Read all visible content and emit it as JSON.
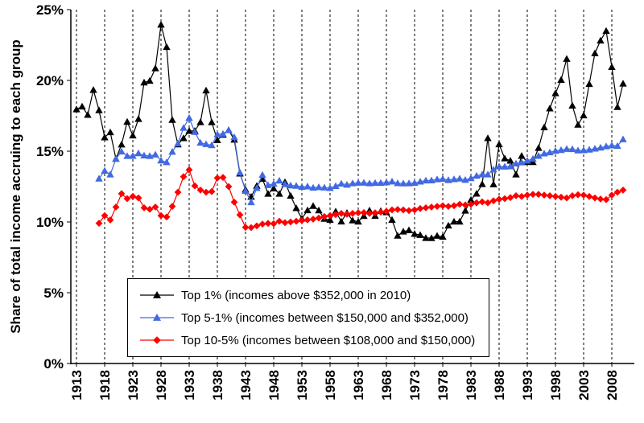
{
  "chart_data": {
    "type": "line",
    "title": "",
    "xlabel": "",
    "ylabel": "Share of total income accruing to each group",
    "ylim": [
      0,
      25
    ],
    "yticks": [
      0,
      5,
      10,
      15,
      20,
      25
    ],
    "ytick_labels": [
      "0%",
      "5%",
      "10%",
      "15%",
      "20%",
      "25%"
    ],
    "xlim": [
      1912,
      2012
    ],
    "xticks": [
      1913,
      1918,
      1923,
      1928,
      1933,
      1938,
      1943,
      1948,
      1953,
      1958,
      1963,
      1968,
      1973,
      1978,
      1983,
      1988,
      1993,
      1998,
      2003,
      2008
    ],
    "grid": "vertical dashed gridlines at labeled years, no horizontal gridlines",
    "legend_position": "inside bottom-center, boxed",
    "series": [
      {
        "id": "top-1pct",
        "name": "Top 1% (incomes above $352,000 in 2010)",
        "color": "#000000",
        "marker": "triangle",
        "start_year": 1913,
        "end_year": 2010,
        "values": [
          17.96,
          18.16,
          17.57,
          19.33,
          17.89,
          15.98,
          16.34,
          14.46,
          15.47,
          17.08,
          16.11,
          17.27,
          19.85,
          19.97,
          20.85,
          23.94,
          22.36,
          17.21,
          15.48,
          15.92,
          16.43,
          16.44,
          17.05,
          19.29,
          17.05,
          15.78,
          16.16,
          16.49,
          15.81,
          13.42,
          12.29,
          11.78,
          12.55,
          13.05,
          11.99,
          12.37,
          11.99,
          12.82,
          11.85,
          10.98,
          10.24,
          10.83,
          11.13,
          10.82,
          10.22,
          10.14,
          10.74,
          10.03,
          10.64,
          10.11,
          10.02,
          10.42,
          10.81,
          10.43,
          10.78,
          10.69,
          10.14,
          9.03,
          9.32,
          9.42,
          9.16,
          9.08,
          8.87,
          8.86,
          9.02,
          8.95,
          9.75,
          10.02,
          10.02,
          10.8,
          11.56,
          12.0,
          12.67,
          15.92,
          12.66,
          15.49,
          14.49,
          14.33,
          13.36,
          14.67,
          14.24,
          14.23,
          15.23,
          16.69,
          18.02,
          19.09,
          20.04,
          21.52,
          18.22,
          16.87,
          17.53,
          19.75,
          21.92,
          22.82,
          23.5,
          20.95,
          18.12,
          19.77
        ]
      },
      {
        "id": "top-5-1pct",
        "name": "Top 5-1% (incomes between $150,000 and $352,000)",
        "color": "#4169e1",
        "marker": "triangle",
        "start_year": 1917,
        "end_year": 2010,
        "values": [
          13.06,
          13.62,
          13.36,
          14.46,
          14.98,
          14.66,
          14.67,
          14.85,
          14.7,
          14.66,
          14.76,
          14.34,
          14.22,
          14.96,
          15.54,
          16.65,
          17.35,
          16.36,
          15.6,
          15.5,
          15.42,
          16.19,
          16.23,
          16.49,
          15.99,
          13.5,
          12.2,
          11.4,
          12.4,
          13.33,
          12.6,
          12.7,
          12.92,
          12.67,
          12.58,
          12.55,
          12.48,
          12.51,
          12.42,
          12.46,
          12.43,
          12.4,
          12.54,
          12.71,
          12.63,
          12.73,
          12.77,
          12.77,
          12.73,
          12.76,
          12.76,
          12.8,
          12.86,
          12.74,
          12.72,
          12.73,
          12.76,
          12.85,
          12.93,
          12.94,
          13.01,
          13.04,
          12.96,
          13.02,
          13.06,
          12.97,
          13.09,
          13.26,
          13.36,
          13.36,
          13.71,
          13.92,
          13.91,
          13.93,
          14.13,
          14.21,
          14.33,
          14.46,
          14.67,
          14.84,
          14.92,
          15.02,
          15.08,
          15.16,
          15.15,
          15.05,
          15.07,
          15.11,
          15.18,
          15.25,
          15.34,
          15.41,
          15.37,
          15.84
        ]
      },
      {
        "id": "top-10-5pct",
        "name": "Top 10-5% (incomes between $108,000 and $150,000)",
        "color": "#ff0000",
        "marker": "diamond",
        "start_year": 1917,
        "end_year": 2010,
        "values": [
          9.91,
          10.45,
          10.14,
          11.05,
          12.0,
          11.65,
          11.8,
          11.7,
          11.0,
          10.9,
          11.05,
          10.45,
          10.35,
          11.1,
          12.1,
          13.2,
          13.68,
          12.55,
          12.25,
          12.1,
          12.15,
          13.1,
          13.15,
          12.5,
          11.4,
          10.5,
          9.62,
          9.6,
          9.72,
          9.85,
          9.9,
          9.88,
          10.05,
          9.95,
          10.0,
          10.05,
          10.1,
          10.15,
          10.2,
          10.28,
          10.38,
          10.45,
          10.52,
          10.6,
          10.55,
          10.6,
          10.65,
          10.66,
          10.6,
          10.65,
          10.7,
          10.75,
          10.85,
          10.88,
          10.85,
          10.8,
          10.85,
          10.95,
          11.0,
          11.05,
          11.1,
          11.15,
          11.1,
          11.15,
          11.25,
          11.2,
          11.25,
          11.35,
          11.42,
          11.35,
          11.5,
          11.6,
          11.65,
          11.72,
          11.85,
          11.8,
          11.9,
          11.95,
          11.95,
          11.9,
          11.85,
          11.8,
          11.75,
          11.7,
          11.85,
          11.92,
          11.9,
          11.8,
          11.7,
          11.62,
          11.58,
          11.9,
          12.1,
          12.25
        ]
      }
    ]
  }
}
